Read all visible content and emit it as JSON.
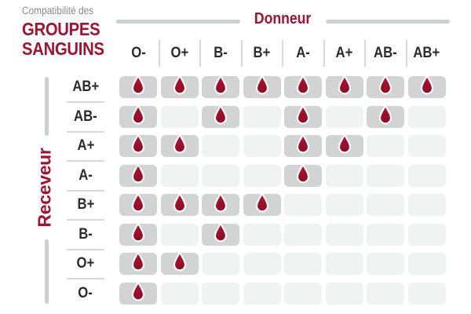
{
  "title": {
    "eyebrow": "Compatibilité des",
    "line1": "GROUPES",
    "line2": "SANGUINS"
  },
  "donor_axis": {
    "label": "Donneur"
  },
  "receiver_axis": {
    "label": "Receveur"
  },
  "chart_data": {
    "type": "heatmap",
    "title": "Compatibilité des groupes sanguins",
    "x_axis_label": "Donneur",
    "y_axis_label": "Receveur",
    "columns": [
      "O-",
      "O+",
      "B-",
      "B+",
      "A-",
      "A+",
      "AB-",
      "AB+"
    ],
    "rows": [
      "AB+",
      "AB-",
      "A+",
      "A-",
      "B+",
      "B-",
      "O+",
      "O-"
    ],
    "values": [
      [
        1,
        1,
        1,
        1,
        1,
        1,
        1,
        1
      ],
      [
        1,
        0,
        1,
        0,
        1,
        0,
        1,
        0
      ],
      [
        1,
        1,
        0,
        0,
        1,
        1,
        0,
        0
      ],
      [
        1,
        0,
        0,
        0,
        1,
        0,
        0,
        0
      ],
      [
        1,
        1,
        1,
        1,
        0,
        0,
        0,
        0
      ],
      [
        1,
        0,
        1,
        0,
        0,
        0,
        0,
        0
      ],
      [
        1,
        1,
        0,
        0,
        0,
        0,
        0,
        0
      ],
      [
        1,
        0,
        0,
        0,
        0,
        0,
        0,
        0
      ]
    ],
    "cell_icon": "blood-drop-icon",
    "grid": "off",
    "legend_position": "none"
  },
  "colors": {
    "accent_red": "#a31230",
    "drop_red_top": "#b01430",
    "drop_red_bottom": "#8f0a26",
    "filled_cell": "#d2d4d4",
    "empty_cell": "#f1f2f2",
    "divider": "#d7d9d9",
    "axis_line": "#cdd0d0",
    "heading_text": "#2b2b2b",
    "eyebrow_text": "#8b8b8b"
  }
}
